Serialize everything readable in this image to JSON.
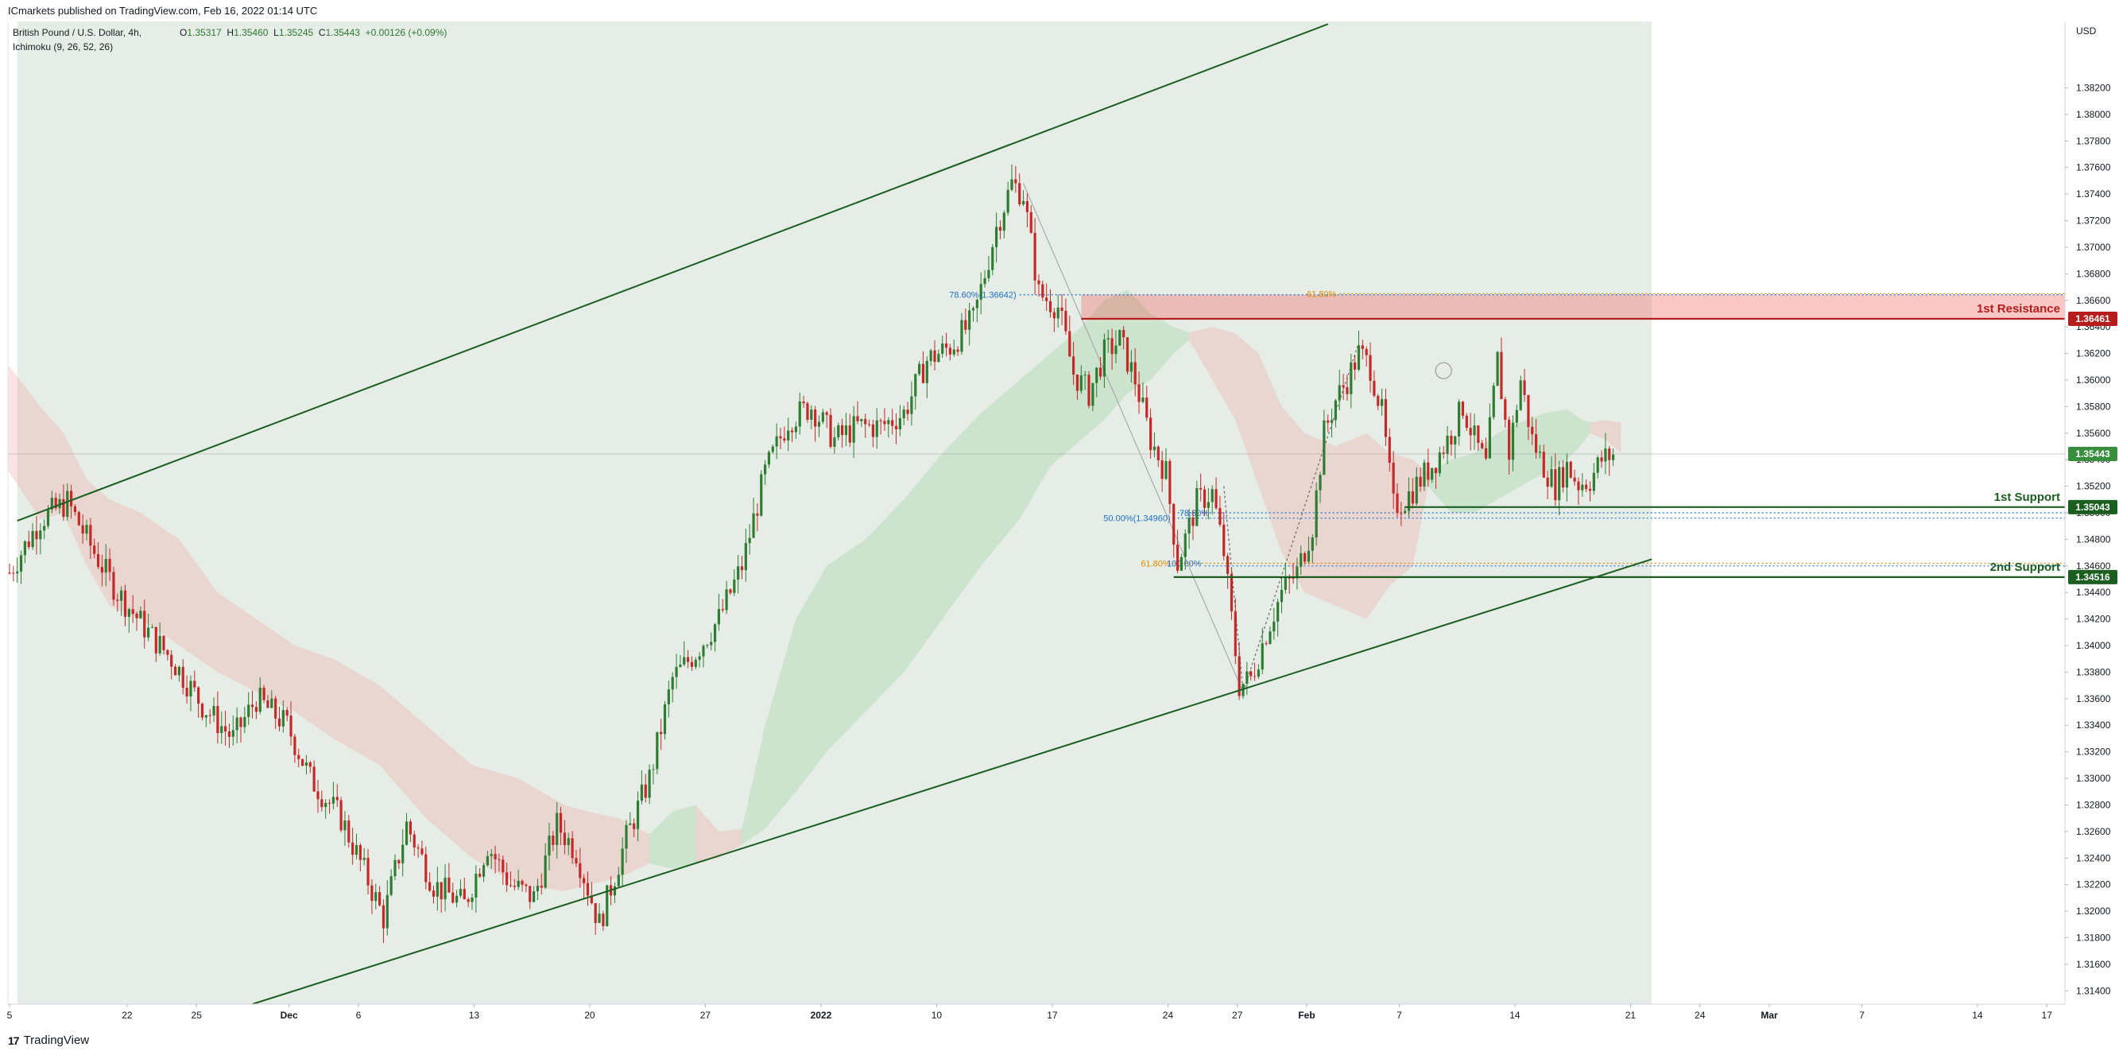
{
  "header": {
    "publisher_line": "ICmarkets published on TradingView.com, Feb 16, 2022 01:14 UTC",
    "symbol_line": "British Pound / U.S. Dollar, 4h,",
    "indicator_line": "Ichimoku (9, 26, 52, 26)",
    "open_label": "O",
    "open_value": "1.35317",
    "high_label": "H",
    "high_value": "1.35460",
    "low_label": "L",
    "low_value": "1.35245",
    "close_label": "C",
    "close_value": "1.35443",
    "change": "+0.00126 (+0.09%)"
  },
  "footer": {
    "logo": "17",
    "brand": "TradingView"
  },
  "colors": {
    "up": "#2e7d32",
    "down": "#c62828",
    "channel": "#1b5e20",
    "resistance": "#b71c1c",
    "support": "#1b5e20",
    "fib": "#1e6fc7",
    "fib_orange": "#e08a00"
  },
  "chart_data": {
    "type": "candlestick",
    "symbol": "GBPUSD",
    "timeframe": "4h",
    "currency": "USD",
    "ylim": [
      1.313,
      1.387
    ],
    "y_ticks": [
      "1.38200",
      "1.38000",
      "1.37800",
      "1.37600",
      "1.37400",
      "1.37200",
      "1.37000",
      "1.36800",
      "1.36600",
      "1.36400",
      "1.36200",
      "1.36000",
      "1.35800",
      "1.35600",
      "1.35400",
      "1.35200",
      "1.35000",
      "1.34800",
      "1.34600",
      "1.34400",
      "1.34200",
      "1.34000",
      "1.33800",
      "1.33600",
      "1.33400",
      "1.33200",
      "1.33000",
      "1.32800",
      "1.32600",
      "1.32400",
      "1.32200",
      "1.32000",
      "1.31800",
      "1.31600",
      "1.31400"
    ],
    "x_ticks": [
      {
        "label": "5",
        "i": 0
      },
      {
        "label": "22",
        "i": 30.5
      },
      {
        "label": "25",
        "i": 48.5
      },
      {
        "label": "Dec",
        "i": 72.5
      },
      {
        "label": "6",
        "i": 90.5
      },
      {
        "label": "13",
        "i": 120.5
      },
      {
        "label": "20",
        "i": 150.5
      },
      {
        "label": "27",
        "i": 180.5
      },
      {
        "label": "2022",
        "i": 210.5
      },
      {
        "label": "10",
        "i": 240.5
      },
      {
        "label": "17",
        "i": 270.5
      },
      {
        "label": "24",
        "i": 300.5
      },
      {
        "label": "27",
        "i": 318.5
      },
      {
        "label": "Feb",
        "i": 336.5
      },
      {
        "label": "7",
        "i": 360.5
      },
      {
        "label": "14",
        "i": 390.5
      },
      {
        "label": "21",
        "i": 420.5
      },
      {
        "label": "24",
        "i": 438.5
      },
      {
        "label": "Mar",
        "i": 456.5
      },
      {
        "label": "7",
        "i": 480.5
      },
      {
        "label": "14",
        "i": 510.5
      },
      {
        "label": "17",
        "i": 528.5
      }
    ],
    "price_path": [
      [
        0,
        1.3455
      ],
      [
        8,
        1.3495
      ],
      [
        15,
        1.3508
      ],
      [
        22,
        1.347
      ],
      [
        28,
        1.344
      ],
      [
        36,
        1.341
      ],
      [
        42,
        1.339
      ],
      [
        50,
        1.3355
      ],
      [
        58,
        1.333
      ],
      [
        64,
        1.336
      ],
      [
        72,
        1.334
      ],
      [
        78,
        1.33
      ],
      [
        86,
        1.327
      ],
      [
        92,
        1.323
      ],
      [
        97,
        1.3195
      ],
      [
        103,
        1.3265
      ],
      [
        110,
        1.322
      ],
      [
        118,
        1.3205
      ],
      [
        124,
        1.325
      ],
      [
        130,
        1.322
      ],
      [
        136,
        1.321
      ],
      [
        142,
        1.3265
      ],
      [
        147,
        1.3245
      ],
      [
        153,
        1.319
      ],
      [
        160,
        1.3255
      ],
      [
        166,
        1.33
      ],
      [
        172,
        1.3375
      ],
      [
        178,
        1.3395
      ],
      [
        184,
        1.342
      ],
      [
        190,
        1.346
      ],
      [
        196,
        1.353
      ],
      [
        202,
        1.357
      ],
      [
        208,
        1.358
      ],
      [
        214,
        1.3555
      ],
      [
        220,
        1.3565
      ],
      [
        226,
        1.3565
      ],
      [
        232,
        1.3575
      ],
      [
        238,
        1.3615
      ],
      [
        244,
        1.3625
      ],
      [
        250,
        1.3645
      ],
      [
        256,
        1.3715
      ],
      [
        260,
        1.3748
      ],
      [
        263,
        1.374
      ],
      [
        267,
        1.3665
      ],
      [
        272,
        1.3655
      ],
      [
        276,
        1.3605
      ],
      [
        280,
        1.359
      ],
      [
        284,
        1.362
      ],
      [
        288,
        1.363
      ],
      [
        292,
        1.36
      ],
      [
        296,
        1.3555
      ],
      [
        300,
        1.353
      ],
      [
        303,
        1.3462
      ],
      [
        308,
        1.3508
      ],
      [
        312,
        1.3515
      ],
      [
        315,
        1.347
      ],
      [
        319,
        1.337
      ],
      [
        322,
        1.3375
      ],
      [
        326,
        1.341
      ],
      [
        330,
        1.344
      ],
      [
        334,
        1.3455
      ],
      [
        338,
        1.349
      ],
      [
        341,
        1.356
      ],
      [
        344,
        1.3585
      ],
      [
        347,
        1.36
      ],
      [
        350,
        1.362
      ],
      [
        353,
        1.361
      ],
      [
        356,
        1.3575
      ],
      [
        359,
        1.3505
      ],
      [
        362,
        1.351
      ],
      [
        366,
        1.3525
      ],
      [
        370,
        1.354
      ],
      [
        374,
        1.356
      ],
      [
        377,
        1.358
      ],
      [
        380,
        1.3555
      ],
      [
        383,
        1.3535
      ],
      [
        386,
        1.3615
      ],
      [
        389,
        1.3545
      ],
      [
        392,
        1.36
      ],
      [
        395,
        1.3555
      ],
      [
        398,
        1.3535
      ],
      [
        401,
        1.352
      ],
      [
        404,
        1.3535
      ],
      [
        407,
        1.3522
      ],
      [
        410,
        1.3525
      ],
      [
        413,
        1.354
      ],
      [
        416,
        1.3544
      ]
    ],
    "ichimoku_cloud": {
      "segments": [
        {
          "color": "red",
          "pts": [
            [
              -6,
              1.361,
              1.3555
            ],
            [
              0,
              1.361,
              1.353
            ],
            [
              8,
              1.358,
              1.3495
            ],
            [
              14,
              1.356,
              1.35
            ],
            [
              20,
              1.3525,
              1.346
            ],
            [
              26,
              1.351,
              1.343
            ],
            [
              34,
              1.35,
              1.342
            ],
            [
              44,
              1.348,
              1.34
            ],
            [
              54,
              1.344,
              1.338
            ],
            [
              64,
              1.342,
              1.3365
            ],
            [
              74,
              1.34,
              1.335
            ],
            [
              84,
              1.339,
              1.333
            ],
            [
              96,
              1.337,
              1.331
            ],
            [
              108,
              1.334,
              1.327
            ],
            [
              120,
              1.331,
              1.324
            ],
            [
              132,
              1.33,
              1.322
            ],
            [
              144,
              1.328,
              1.3215
            ],
            [
              150,
              1.3275,
              1.322
            ],
            [
              158,
              1.327,
              1.3225
            ],
            [
              166,
              1.3258,
              1.3236
            ]
          ]
        },
        {
          "color": "green",
          "pts": [
            [
              166,
              1.3258,
              1.3236
            ],
            [
              172,
              1.3275,
              1.3232
            ],
            [
              178,
              1.328,
              1.3236
            ]
          ]
        },
        {
          "color": "red",
          "pts": [
            [
              178,
              1.328,
              1.3236
            ],
            [
              184,
              1.326,
              1.324
            ],
            [
              190,
              1.3262,
              1.325
            ]
          ]
        },
        {
          "color": "green",
          "pts": [
            [
              190,
              1.3262,
              1.325
            ],
            [
              196,
              1.334,
              1.3262
            ],
            [
              204,
              1.342,
              1.329
            ],
            [
              212,
              1.346,
              1.332
            ],
            [
              222,
              1.348,
              1.335
            ],
            [
              232,
              1.351,
              1.338
            ],
            [
              242,
              1.3545,
              1.342
            ],
            [
              252,
              1.3575,
              1.346
            ],
            [
              262,
              1.36,
              1.3495
            ],
            [
              270,
              1.362,
              1.3535
            ],
            [
              278,
              1.364,
              1.3555
            ],
            [
              284,
              1.366,
              1.357
            ],
            [
              290,
              1.3668,
              1.359
            ],
            [
              296,
              1.365,
              1.36
            ],
            [
              302,
              1.364,
              1.362
            ],
            [
              306,
              1.3636,
              1.363
            ]
          ]
        },
        {
          "color": "red",
          "pts": [
            [
              306,
              1.3636,
              1.363
            ],
            [
              312,
              1.364,
              1.36
            ],
            [
              318,
              1.3635,
              1.357
            ],
            [
              324,
              1.362,
              1.352
            ],
            [
              330,
              1.358,
              1.347
            ],
            [
              336,
              1.356,
              1.344
            ],
            [
              344,
              1.355,
              1.343
            ],
            [
              352,
              1.356,
              1.342
            ],
            [
              358,
              1.3545,
              1.3445
            ],
            [
              364,
              1.354,
              1.346
            ],
            [
              368,
              1.353,
              1.352
            ]
          ]
        },
        {
          "color": "green",
          "pts": [
            [
              368,
              1.353,
              1.352
            ],
            [
              374,
              1.354,
              1.35
            ],
            [
              380,
              1.3545,
              1.35
            ],
            [
              386,
              1.356,
              1.351
            ],
            [
              392,
              1.3568,
              1.352
            ],
            [
              398,
              1.3575,
              1.353
            ],
            [
              404,
              1.3578,
              1.354
            ],
            [
              408,
              1.357,
              1.3552
            ],
            [
              410,
              1.3568,
              1.356
            ]
          ]
        },
        {
          "color": "red",
          "pts": [
            [
              410,
              1.3568,
              1.356
            ],
            [
              414,
              1.357,
              1.3555
            ],
            [
              418,
              1.3568,
              1.3545
            ]
          ]
        }
      ]
    },
    "channel": {
      "upper": {
        "from": [
          2,
          1.3494
        ],
        "to": [
          342,
          1.3868
        ]
      },
      "lower": {
        "from": [
          63,
          1.313
        ],
        "to": [
          426,
          1.3465
        ]
      },
      "shade_right_i": 426
    },
    "levels": [
      {
        "name": "1st Resistance",
        "price": 1.36461,
        "label_value": "1.36461",
        "zone_top": 1.36642,
        "from_i": 278,
        "kind": "resistance"
      },
      {
        "name": "1st Support",
        "price": 1.35043,
        "label_value": "1.35043",
        "from_i": 362,
        "kind": "support"
      },
      {
        "name": "2nd Support",
        "price": 1.34516,
        "label_value": "1.34516",
        "from_i": 302,
        "kind": "support"
      }
    ],
    "last_price": {
      "price": 1.35443,
      "label": "1.35443"
    },
    "fibonacci": [
      {
        "label": "78.60%(1.36642)",
        "price": 1.36642,
        "i": 262,
        "color": "fib"
      },
      {
        "label": "61.80%",
        "price": 1.3665,
        "i": 345,
        "color": "fib_orange"
      },
      {
        "label": "78.60%",
        "price": 1.35,
        "i": 312,
        "color": "fib"
      },
      {
        "label": "50.00%(1.34960)",
        "price": 1.3496,
        "i": 302,
        "color": "fib"
      },
      {
        "label": "61.80%",
        "price": 1.3462,
        "i": 302,
        "color": "fib_orange"
      },
      {
        "label": "100.00%",
        "price": 1.3462,
        "i": 310,
        "color": "fib"
      }
    ]
  }
}
